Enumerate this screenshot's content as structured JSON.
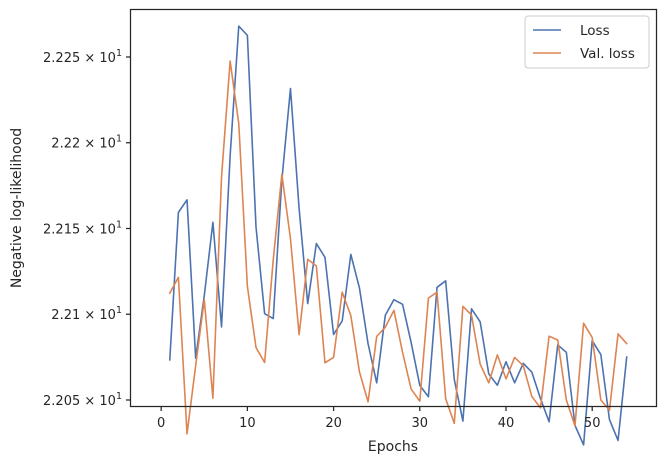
{
  "chart_data": {
    "type": "line",
    "xlabel": "Epochs",
    "ylabel": "Negative log-likelihood",
    "xlim": [
      -3.5,
      57.4
    ],
    "ylim": [
      22.0465,
      22.2774
    ],
    "x_ticks": [
      0,
      10,
      20,
      30,
      40,
      50
    ],
    "y_ticks": [
      {
        "value": 22.05,
        "label": "2.205"
      },
      {
        "value": 22.1,
        "label": "2.21"
      },
      {
        "value": 22.15,
        "label": "2.215"
      },
      {
        "value": 22.2,
        "label": "2.22"
      },
      {
        "value": 22.25,
        "label": "2.225"
      }
    ],
    "y_tick_suffix": "× 10",
    "y_tick_exponent": "1",
    "grid": false,
    "legend_position": "top-right",
    "x": [
      1,
      2,
      3,
      4,
      5,
      6,
      7,
      8,
      9,
      10,
      11,
      12,
      13,
      14,
      15,
      16,
      17,
      18,
      19,
      20,
      21,
      22,
      23,
      24,
      25,
      26,
      27,
      28,
      29,
      30,
      31,
      32,
      33,
      34,
      35,
      36,
      37,
      38,
      39,
      40,
      41,
      42,
      43,
      44,
      45,
      46,
      47,
      48,
      49,
      50,
      51,
      52,
      53,
      54
    ],
    "series": [
      {
        "name": "Loss",
        "color": "#4c72b0",
        "values": [
          22.0734,
          22.1594,
          22.1667,
          22.0743,
          22.1109,
          22.1536,
          22.0926,
          22.1925,
          22.268,
          22.2626,
          22.1509,
          22.1003,
          22.0975,
          22.1783,
          22.2316,
          22.1618,
          22.1062,
          22.1412,
          22.1332,
          22.0882,
          22.0961,
          22.1349,
          22.1153,
          22.0828,
          22.06,
          22.0994,
          22.1085,
          22.1058,
          22.0834,
          22.0585,
          22.0519,
          22.1157,
          22.1195,
          22.062,
          22.0377,
          22.1032,
          22.0956,
          22.0652,
          22.0586,
          22.0723,
          22.06,
          22.0714,
          22.0662,
          22.0508,
          22.0373,
          22.0821,
          22.0778,
          22.0352,
          22.0238,
          22.0846,
          22.0765,
          22.0386,
          22.0264,
          22.075
        ]
      },
      {
        "name": "Val. loss",
        "color": "#dd8452",
        "values": [
          22.1123,
          22.1215,
          22.0303,
          22.07,
          22.1085,
          22.051,
          22.18,
          22.2476,
          22.2112,
          22.1163,
          22.0806,
          22.0719,
          22.1318,
          22.1816,
          22.144,
          22.0881,
          22.132,
          22.1282,
          22.0717,
          22.0749,
          22.1129,
          22.0992,
          22.0664,
          22.0489,
          22.0871,
          22.0924,
          22.1023,
          22.0778,
          22.0563,
          22.0493,
          22.1094,
          22.1129,
          22.0508,
          22.0364,
          22.1046,
          22.0995,
          22.071,
          22.06,
          22.0763,
          22.0623,
          22.0748,
          22.07,
          22.052,
          22.0454,
          22.0872,
          22.085,
          22.05,
          22.0349,
          22.0948,
          22.0864,
          22.05,
          22.044,
          22.0885,
          22.0829
        ]
      }
    ]
  }
}
